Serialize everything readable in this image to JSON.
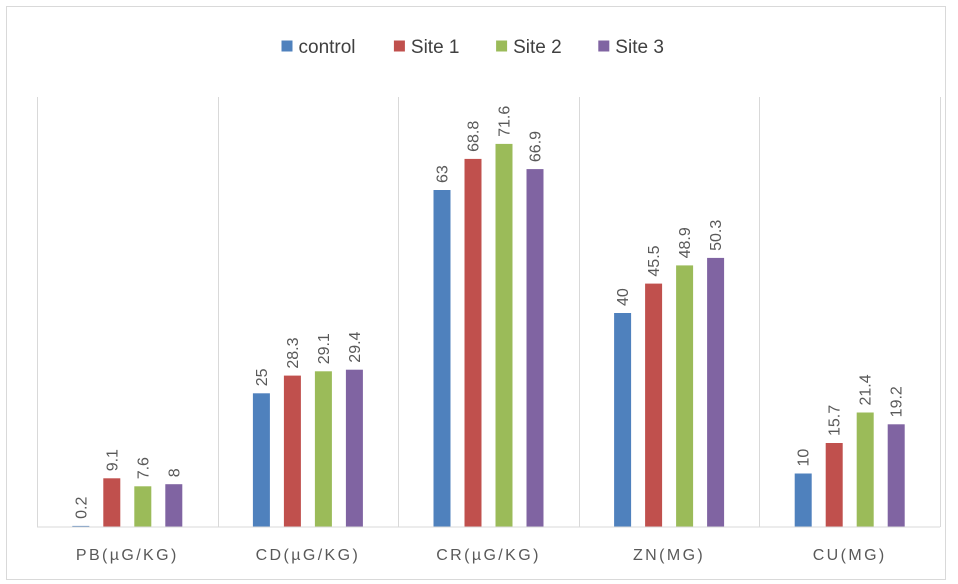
{
  "chart_data": {
    "type": "bar",
    "title": "",
    "xlabel": "",
    "ylabel": "",
    "categories": [
      "PB(µG/KG)",
      "CD(µG/KG)",
      "CR(µG/KG)",
      "ZN(MG)",
      "CU(MG)"
    ],
    "series": [
      {
        "name": "control",
        "color": "#4f81bd",
        "values": [
          0.2,
          25,
          63,
          40,
          10
        ]
      },
      {
        "name": "Site 1",
        "color": "#c0504d",
        "values": [
          9.1,
          28.3,
          68.8,
          45.5,
          15.7
        ]
      },
      {
        "name": "Site 2",
        "color": "#9bbb59",
        "values": [
          7.6,
          29.1,
          71.6,
          48.9,
          21.4
        ]
      },
      {
        "name": "Site 3",
        "color": "#8064a2",
        "values": [
          8,
          29.4,
          66.9,
          50.3,
          19.2
        ]
      }
    ],
    "ylim": [
      0,
      80
    ],
    "legend_position": "top-center",
    "gridlines": "vertical category separators only",
    "data_labels": "rotated vertical above bars"
  }
}
